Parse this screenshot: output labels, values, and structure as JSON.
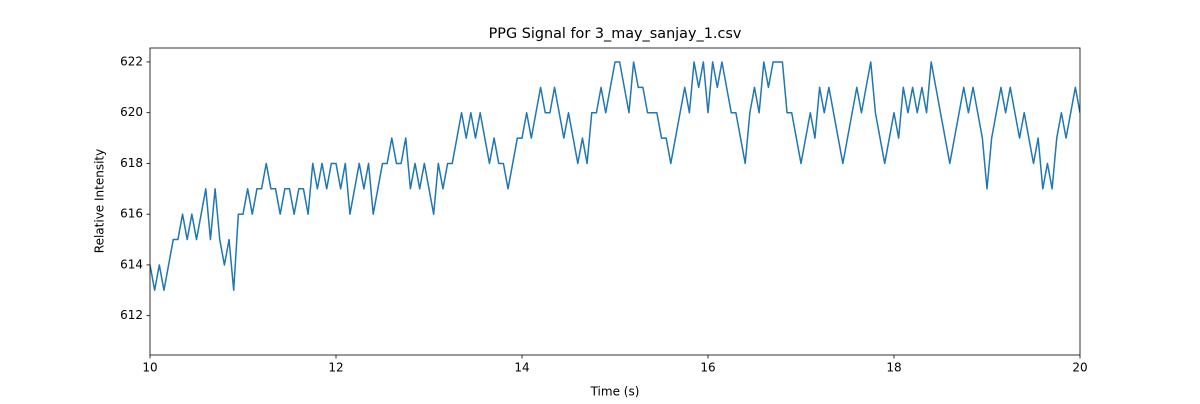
{
  "chart_data": {
    "type": "line",
    "title": "PPG Signal for 3_may_sanjay_1.csv",
    "x_label": "Time (s)",
    "y_label": "Relative Intensity",
    "color": "#1f77b4",
    "xlim": [
      10,
      20
    ],
    "xticks": [
      10,
      12,
      14,
      16,
      18,
      20
    ],
    "ylim": [
      610.45,
      622.55
    ],
    "yticks": [
      612,
      614,
      616,
      618,
      620,
      622
    ],
    "x": [
      10,
      10.05,
      10.1,
      10.15,
      10.2,
      10.25,
      10.3,
      10.35,
      10.4,
      10.45,
      10.5,
      10.55,
      10.6,
      10.65,
      10.7,
      10.75,
      10.8,
      10.85,
      10.9,
      10.95,
      11,
      11.05,
      11.1,
      11.15,
      11.2,
      11.25,
      11.3,
      11.35,
      11.4,
      11.45,
      11.5,
      11.55,
      11.6,
      11.65,
      11.7,
      11.75,
      11.8,
      11.85,
      11.9,
      11.95,
      12,
      12.05,
      12.1,
      12.15,
      12.2,
      12.25,
      12.3,
      12.35,
      12.4,
      12.45,
      12.5,
      12.55,
      12.6,
      12.65,
      12.7,
      12.75,
      12.8,
      12.85,
      12.9,
      12.95,
      13,
      13.05,
      13.1,
      13.15,
      13.2,
      13.25,
      13.3,
      13.35,
      13.4,
      13.45,
      13.5,
      13.55,
      13.6,
      13.65,
      13.7,
      13.75,
      13.8,
      13.85,
      13.9,
      13.95,
      14,
      14.05,
      14.1,
      14.15,
      14.2,
      14.25,
      14.3,
      14.35,
      14.4,
      14.45,
      14.5,
      14.55,
      14.6,
      14.65,
      14.7,
      14.75,
      14.8,
      14.85,
      14.9,
      14.95,
      15,
      15.05,
      15.1,
      15.15,
      15.2,
      15.25,
      15.3,
      15.35,
      15.4,
      15.45,
      15.5,
      15.55,
      15.6,
      15.65,
      15.7,
      15.75,
      15.8,
      15.85,
      15.9,
      15.95,
      16,
      16.05,
      16.1,
      16.15,
      16.2,
      16.25,
      16.3,
      16.35,
      16.4,
      16.45,
      16.5,
      16.55,
      16.6,
      16.65,
      16.7,
      16.75,
      16.8,
      16.85,
      16.9,
      16.95,
      17,
      17.05,
      17.1,
      17.15,
      17.2,
      17.25,
      17.3,
      17.35,
      17.4,
      17.45,
      17.5,
      17.55,
      17.6,
      17.65,
      17.7,
      17.75,
      17.8,
      17.85,
      17.9,
      17.95,
      18,
      18.05,
      18.1,
      18.15,
      18.2,
      18.25,
      18.3,
      18.35,
      18.4,
      18.45,
      18.5,
      18.55,
      18.6,
      18.65,
      18.7,
      18.75,
      18.8,
      18.85,
      18.9,
      18.95,
      19,
      19.05,
      19.1,
      19.15,
      19.2,
      19.25,
      19.3,
      19.35,
      19.4,
      19.45,
      19.5,
      19.55,
      19.6,
      19.65,
      19.7,
      19.75,
      19.8,
      19.85,
      19.9,
      19.95,
      20
    ],
    "values": [
      614,
      613,
      614,
      613,
      614,
      615,
      615,
      616,
      615,
      616,
      615,
      616,
      617,
      615,
      617,
      615,
      614,
      615,
      613,
      616,
      616,
      617,
      616,
      617,
      617,
      618,
      617,
      617,
      616,
      617,
      617,
      616,
      617,
      617,
      616,
      618,
      617,
      618,
      617,
      618,
      618,
      617,
      618,
      616,
      617,
      618,
      617,
      618,
      616,
      617,
      618,
      618,
      619,
      618,
      618,
      619,
      617,
      618,
      617,
      618,
      617,
      616,
      618,
      617,
      618,
      618,
      619,
      620,
      619,
      620,
      619,
      620,
      619,
      618,
      619,
      618,
      618,
      617,
      618,
      619,
      619,
      620,
      619,
      620,
      621,
      620,
      620,
      621,
      620,
      619,
      620,
      619,
      618,
      619,
      618,
      620,
      620,
      621,
      620,
      621,
      622,
      622,
      621,
      620,
      622,
      621,
      621,
      620,
      620,
      620,
      619,
      619,
      618,
      619,
      620,
      621,
      620,
      622,
      621,
      622,
      620,
      622,
      621,
      622,
      621,
      620,
      620,
      619,
      618,
      620,
      621,
      620,
      622,
      621,
      622,
      622,
      622,
      620,
      620,
      619,
      618,
      619,
      620,
      619,
      621,
      620,
      621,
      620,
      619,
      618,
      619,
      620,
      621,
      620,
      621,
      622,
      620,
      619,
      618,
      619,
      620,
      619,
      621,
      620,
      621,
      620,
      621,
      620,
      622,
      621,
      620,
      619,
      618,
      619,
      620,
      621,
      620,
      621,
      620,
      619,
      617,
      619,
      620,
      621,
      620,
      621,
      620,
      619,
      620,
      619,
      618,
      619,
      617,
      618,
      617,
      619,
      620,
      619,
      620,
      621,
      620
    ]
  }
}
